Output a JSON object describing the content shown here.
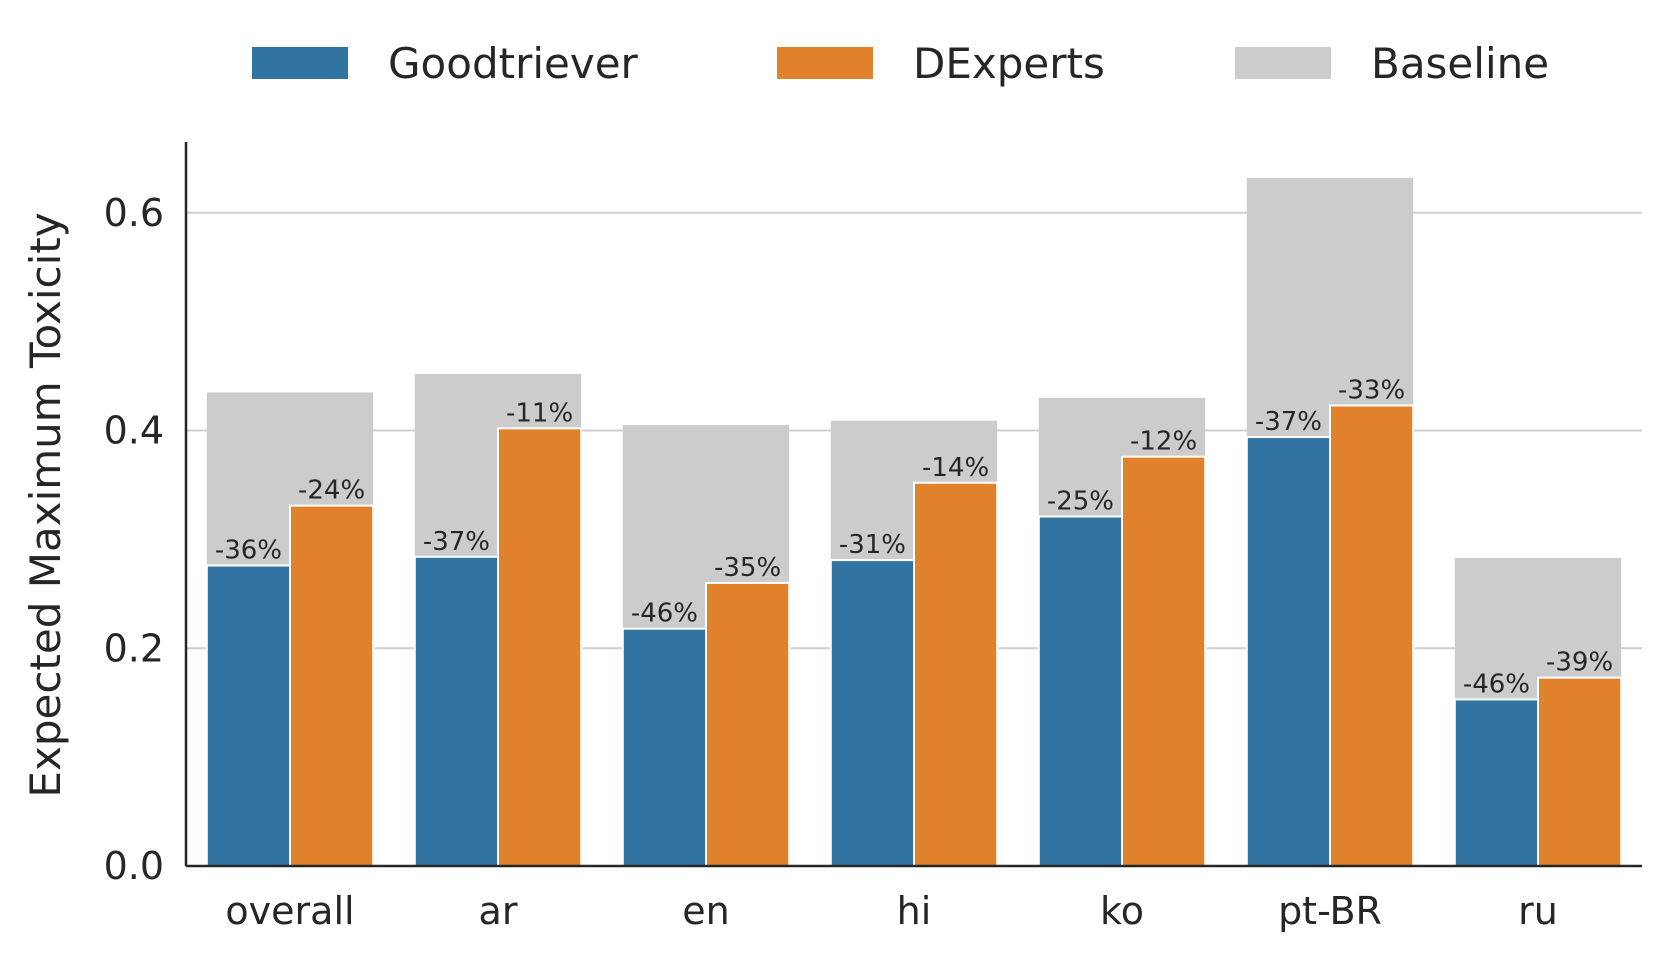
{
  "chart_data": {
    "type": "bar",
    "categories": [
      "overall",
      "ar",
      "en",
      "hi",
      "ko",
      "pt-BR",
      "ru"
    ],
    "baseline": {
      "name": "Baseline",
      "values": [
        0.435,
        0.452,
        0.405,
        0.409,
        0.43,
        0.632,
        0.283
      ],
      "color": "#cccccc"
    },
    "series": [
      {
        "name": "Goodtriever",
        "values": [
          0.276,
          0.284,
          0.218,
          0.281,
          0.321,
          0.394,
          0.153
        ],
        "labels": [
          "-36%",
          "-37%",
          "-46%",
          "-31%",
          "-25%",
          "-37%",
          "-46%"
        ],
        "color": "#3274a1"
      },
      {
        "name": "DExperts",
        "values": [
          0.331,
          0.402,
          0.26,
          0.352,
          0.376,
          0.423,
          0.173
        ],
        "labels": [
          "-24%",
          "-11%",
          "-35%",
          "-14%",
          "-12%",
          "-33%",
          "-39%"
        ],
        "color": "#e1812c"
      }
    ],
    "legend_order": [
      "Goodtriever",
      "DExperts",
      "Baseline"
    ],
    "legend_position": "top",
    "ylabel": "Expected Maximum Toxicity",
    "xlabel": "",
    "ylim": [
      0,
      0.665
    ],
    "yticks": [
      "0.0",
      "0.2",
      "0.4",
      "0.6"
    ],
    "grid": "horizontal"
  }
}
